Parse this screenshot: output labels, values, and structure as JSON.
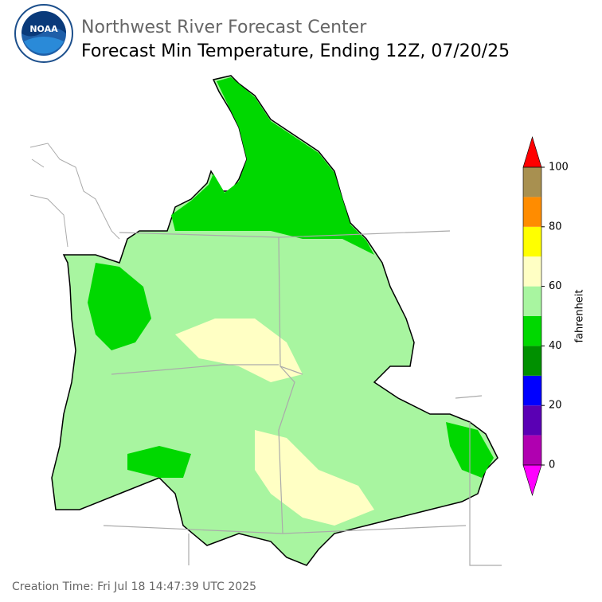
{
  "header": {
    "logo_text": "NOAA",
    "title": "Northwest River Forecast Center",
    "subtitle": "Forecast Min Temperature, Ending 12Z, 07/20/25"
  },
  "colorbar": {
    "label": "fahrenheit",
    "lim": [
      0,
      100
    ],
    "bounds": [
      0,
      10,
      20,
      30,
      40,
      50,
      60,
      70,
      80,
      90,
      100
    ],
    "colors": [
      "#b000b0",
      "#5a00b4",
      "#0000ff",
      "#009000",
      "#00d800",
      "#a8f5a0",
      "#ffffc4",
      "#ffff00",
      "#ff8c00",
      "#a89050"
    ],
    "under_color": "#ff00ff",
    "over_color": "#ff0000",
    "ticks": [
      0,
      20,
      40,
      60,
      80,
      100
    ]
  },
  "footer": {
    "creation_time": "Creation Time: Fri Jul 18 14:47:39 UTC 2025"
  }
}
